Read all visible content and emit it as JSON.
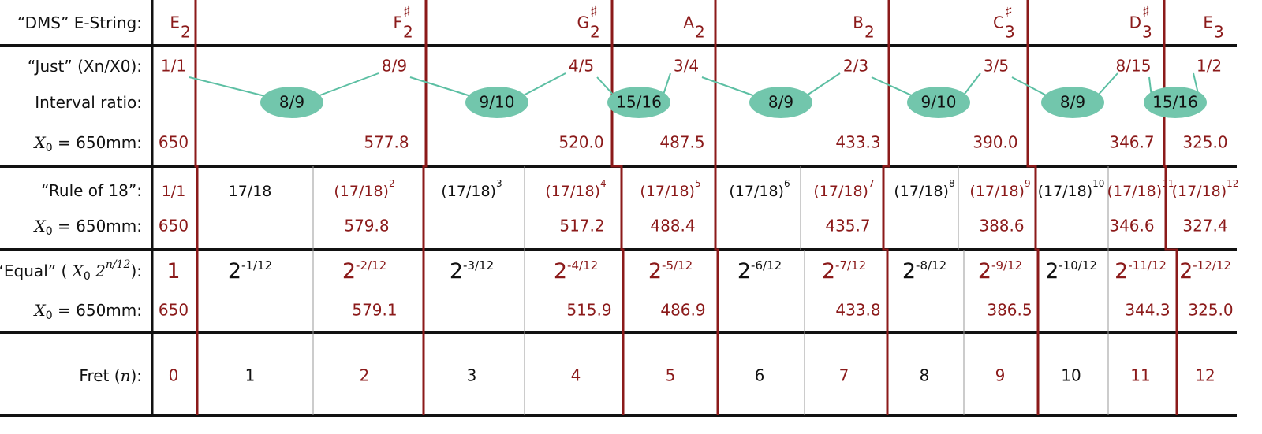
{
  "labels": {
    "dms": [
      {
        "text": "“DMS” E-String:"
      }
    ],
    "just": [
      {
        "text": "“Just” (Xn/X0):"
      }
    ],
    "interval": [
      {
        "text": "Interval ratio:"
      }
    ],
    "just_x0": [
      {
        "text": "X",
        "style": "var"
      },
      {
        "text": "0",
        "style": "sub"
      },
      {
        "text": " = 650mm:"
      }
    ],
    "rule18": [
      {
        "text": "“Rule of 18”:"
      }
    ],
    "rule18_x0": [
      {
        "text": "X",
        "style": "var"
      },
      {
        "text": "0",
        "style": "sub"
      },
      {
        "text": " = 650mm:"
      }
    ],
    "equal": [
      {
        "text": "“Equal” ( "
      },
      {
        "text": "X",
        "style": "var"
      },
      {
        "text": "0",
        "style": "sub"
      },
      {
        "text": " 2",
        "style": "var"
      },
      {
        "text": "n/12",
        "style": "sup"
      },
      {
        "text": "):"
      }
    ],
    "equal_x0": [
      {
        "text": "X",
        "style": "var"
      },
      {
        "text": "0",
        "style": "sub"
      },
      {
        "text": " = 650mm:"
      }
    ],
    "fret": [
      {
        "text": "Fret ("
      },
      {
        "text": "n",
        "style": "var"
      },
      {
        "text": "):"
      }
    ]
  },
  "notes": [
    {
      "letter": "E",
      "octave": "2"
    },
    {
      "letter": "F",
      "accidental": "♯",
      "octave": "2"
    },
    {
      "letter": "G",
      "accidental": "♯",
      "octave": "2"
    },
    {
      "letter": "A",
      "octave": "2"
    },
    {
      "letter": "B",
      "octave": "2"
    },
    {
      "letter": "C",
      "accidental": "♯",
      "octave": "3"
    },
    {
      "letter": "D",
      "accidental": "♯",
      "octave": "3"
    },
    {
      "letter": "E",
      "octave": "3"
    }
  ],
  "just": {
    "ratios": [
      "1/1",
      "8/9",
      "4/5",
      "3/4",
      "2/3",
      "3/5",
      "8/15",
      "1/2"
    ],
    "intervals": [
      "8/9",
      "9/10",
      "15/16",
      "8/9",
      "9/10",
      "8/9",
      "15/16"
    ],
    "lengths": [
      "650",
      "577.8",
      "520.0",
      "487.5",
      "433.3",
      "390.0",
      "346.7",
      "325.0"
    ]
  },
  "rule18": {
    "ratios": [
      {
        "base": "1/1"
      },
      {
        "base": "17/18"
      },
      {
        "base": "(17/18)",
        "exp": "2"
      },
      {
        "base": "(17/18)",
        "exp": "3"
      },
      {
        "base": "(17/18)",
        "exp": "4"
      },
      {
        "base": "(17/18)",
        "exp": "5"
      },
      {
        "base": "(17/18)",
        "exp": "6"
      },
      {
        "base": "(17/18)",
        "exp": "7"
      },
      {
        "base": "(17/18)",
        "exp": "8"
      },
      {
        "base": "(17/18)",
        "exp": "9"
      },
      {
        "base": "(17/18)",
        "exp": "10"
      },
      {
        "base": "(17/18)",
        "exp": "11"
      },
      {
        "base": "(17/18)",
        "exp": "12"
      }
    ],
    "lengths": [
      "650",
      "579.8",
      "517.2",
      "488.4",
      "435.7",
      "388.6",
      "346.6",
      "327.4"
    ]
  },
  "equal": {
    "ratios": [
      {
        "base": "1"
      },
      {
        "base": "2",
        "exp": "-1/12"
      },
      {
        "base": "2",
        "exp": "-2/12"
      },
      {
        "base": "2",
        "exp": "-3/12"
      },
      {
        "base": "2",
        "exp": "-4/12"
      },
      {
        "base": "2",
        "exp": "-5/12"
      },
      {
        "base": "2",
        "exp": "-6/12"
      },
      {
        "base": "2",
        "exp": "-7/12"
      },
      {
        "base": "2",
        "exp": "-8/12"
      },
      {
        "base": "2",
        "exp": "-9/12"
      },
      {
        "base": "2",
        "exp": "-10/12"
      },
      {
        "base": "2",
        "exp": "-11/12"
      },
      {
        "base": "2",
        "exp": "-12/12"
      }
    ],
    "lengths": [
      "650",
      "579.1",
      "515.9",
      "486.9",
      "433.8",
      "386.5",
      "344.3",
      "325.0"
    ]
  },
  "frets": [
    "0",
    "1",
    "2",
    "3",
    "4",
    "5",
    "6",
    "7",
    "8",
    "9",
    "10",
    "11",
    "12"
  ]
}
